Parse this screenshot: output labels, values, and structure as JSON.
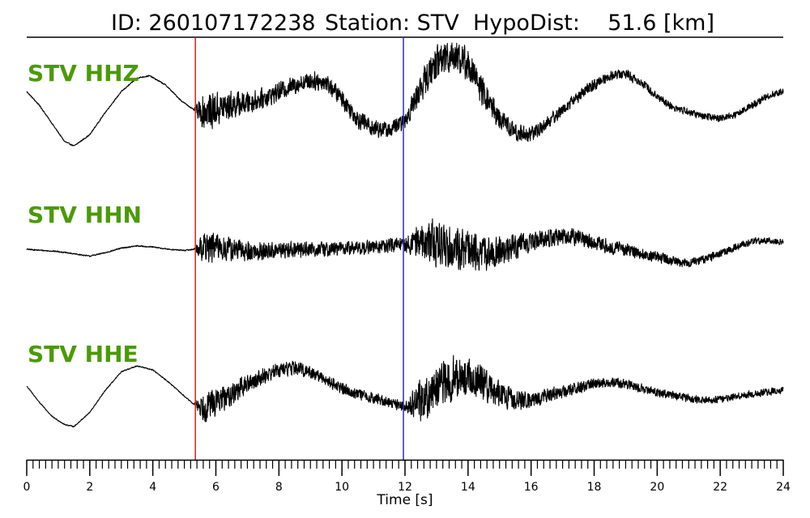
{
  "title": {
    "event_id": "ID: 260107172238",
    "station": "Station: STV",
    "hypodist": "HypoDist:    51.6 [km]"
  },
  "colors": {
    "label": "#4b9a06",
    "trace": "#000000",
    "p_pick": "#e8191c",
    "s_pick": "#2a2ad6"
  },
  "chart_data": {
    "type": "line",
    "title": "ID: 260107172238   Station: STV   HypoDist:    51.6 [km]",
    "xlabel": "Time [s]",
    "ylabel": "",
    "xlim": [
      0,
      24
    ],
    "xticks": [
      0,
      2,
      4,
      6,
      8,
      10,
      12,
      14,
      16,
      18,
      20,
      22,
      24
    ],
    "minor_tick_step": 0.2,
    "grid": false,
    "picks": [
      {
        "phase": "P",
        "time": 5.35,
        "color": "#e8191c"
      },
      {
        "phase": "S",
        "time": 11.95,
        "color": "#2a2ad6"
      }
    ],
    "series": [
      {
        "name": "STV HHZ",
        "description": "waveform",
        "x": [
          0,
          0.4,
          0.8,
          1.2,
          1.5,
          2.0,
          2.5,
          3.0,
          3.5,
          3.9,
          4.4,
          4.9,
          5.3,
          5.6,
          6.0,
          6.5,
          7.0,
          7.5,
          8.0,
          8.5,
          9.0,
          9.5,
          10.0,
          10.5,
          11.0,
          11.5,
          12.0,
          12.5,
          13.0,
          13.5,
          14.0,
          14.5,
          15.0,
          15.5,
          16.0,
          16.5,
          17.0,
          17.5,
          18.0,
          18.5,
          19.0,
          19.5,
          20.0,
          20.5,
          21.0,
          21.5,
          22.0,
          22.5,
          23.0,
          23.5,
          24.0
        ],
        "y": [
          0.6,
          0.0,
          -0.8,
          -1.6,
          -1.8,
          -1.3,
          -0.3,
          0.6,
          1.2,
          1.3,
          0.9,
          0.2,
          -0.2,
          -0.3,
          -0.2,
          0.0,
          0.1,
          0.3,
          0.6,
          0.9,
          1.1,
          1.0,
          0.3,
          -0.6,
          -1.0,
          -1.1,
          -0.7,
          0.8,
          1.9,
          2.3,
          1.8,
          0.5,
          -0.6,
          -1.2,
          -1.3,
          -0.8,
          -0.2,
          0.4,
          0.9,
          1.3,
          1.4,
          1.0,
          0.4,
          -0.1,
          -0.3,
          -0.5,
          -0.6,
          -0.4,
          0.0,
          0.4,
          0.6
        ],
        "noise": [
          0.03,
          0.03,
          0.03,
          0.03,
          0.03,
          0.03,
          0.03,
          0.03,
          0.03,
          0.03,
          0.03,
          0.03,
          0.03,
          0.9,
          0.85,
          0.7,
          0.55,
          0.5,
          0.45,
          0.45,
          0.45,
          0.45,
          0.45,
          0.45,
          0.45,
          0.4,
          0.4,
          0.7,
          0.9,
          0.9,
          0.8,
          0.7,
          0.55,
          0.45,
          0.4,
          0.35,
          0.3,
          0.3,
          0.28,
          0.25,
          0.25,
          0.22,
          0.2,
          0.2,
          0.18,
          0.18,
          0.18,
          0.18,
          0.18,
          0.18,
          0.15
        ]
      },
      {
        "name": "STV HHN",
        "description": "waveform",
        "x": [
          0,
          0.5,
          1.0,
          1.5,
          2.0,
          2.5,
          3.0,
          3.5,
          4.0,
          4.5,
          5.0,
          5.3,
          5.6,
          6.0,
          6.5,
          7.0,
          7.5,
          8.0,
          8.5,
          9.0,
          9.5,
          10.0,
          10.5,
          11.0,
          11.5,
          12.0,
          12.5,
          13.0,
          13.5,
          14.0,
          14.5,
          15.0,
          15.5,
          16.0,
          16.5,
          17.0,
          17.5,
          18.0,
          18.5,
          19.0,
          19.5,
          20.0,
          20.5,
          21.0,
          21.5,
          22.0,
          22.5,
          23.0,
          23.5,
          24.0
        ],
        "y": [
          0.0,
          -0.05,
          -0.1,
          -0.2,
          -0.3,
          -0.15,
          0.05,
          0.15,
          0.1,
          0.0,
          -0.05,
          0.0,
          0.1,
          0.1,
          0.0,
          -0.1,
          -0.1,
          -0.05,
          0.0,
          0.0,
          0.0,
          0.05,
          0.05,
          0.1,
          0.15,
          0.2,
          0.4,
          0.3,
          0.1,
          -0.1,
          -0.2,
          -0.1,
          0.1,
          0.3,
          0.5,
          0.6,
          0.5,
          0.3,
          0.1,
          0.0,
          -0.2,
          -0.35,
          -0.5,
          -0.6,
          -0.45,
          -0.2,
          0.1,
          0.35,
          0.4,
          0.3
        ],
        "noise": [
          0.03,
          0.03,
          0.03,
          0.03,
          0.03,
          0.03,
          0.03,
          0.03,
          0.03,
          0.03,
          0.03,
          0.03,
          0.75,
          0.7,
          0.6,
          0.5,
          0.45,
          0.4,
          0.4,
          0.38,
          0.36,
          0.35,
          0.35,
          0.35,
          0.35,
          0.35,
          0.9,
          1.2,
          1.1,
          1.0,
          0.85,
          0.7,
          0.6,
          0.5,
          0.45,
          0.45,
          0.42,
          0.38,
          0.35,
          0.32,
          0.3,
          0.26,
          0.25,
          0.22,
          0.2,
          0.2,
          0.18,
          0.17,
          0.15,
          0.15
        ]
      },
      {
        "name": "STV HHE",
        "description": "waveform",
        "x": [
          0,
          0.4,
          0.8,
          1.2,
          1.5,
          2.0,
          2.5,
          3.0,
          3.5,
          4.0,
          4.5,
          5.0,
          5.3,
          5.6,
          6.0,
          6.5,
          7.0,
          7.5,
          8.0,
          8.5,
          9.0,
          9.5,
          10.0,
          10.5,
          11.0,
          11.5,
          12.0,
          12.5,
          13.0,
          13.5,
          14.0,
          14.5,
          15.0,
          15.5,
          16.0,
          16.5,
          17.0,
          17.5,
          18.0,
          18.5,
          19.0,
          19.5,
          20.0,
          20.5,
          21.0,
          21.5,
          22.0,
          22.5,
          23.0,
          23.5,
          24.0
        ],
        "y": [
          0.2,
          -0.6,
          -1.3,
          -1.7,
          -1.8,
          -1.1,
          0.0,
          0.9,
          1.2,
          1.0,
          0.4,
          -0.3,
          -0.7,
          -0.8,
          -0.6,
          -0.2,
          0.3,
          0.7,
          1.0,
          1.1,
          0.9,
          0.5,
          0.1,
          -0.2,
          -0.4,
          -0.6,
          -0.8,
          -0.5,
          0.1,
          0.6,
          0.6,
          0.3,
          -0.2,
          -0.5,
          -0.5,
          -0.3,
          -0.1,
          0.1,
          0.3,
          0.4,
          0.3,
          0.1,
          -0.1,
          -0.25,
          -0.4,
          -0.5,
          -0.45,
          -0.3,
          -0.2,
          -0.1,
          0.0
        ],
        "noise": [
          0.03,
          0.03,
          0.03,
          0.03,
          0.03,
          0.03,
          0.03,
          0.03,
          0.03,
          0.03,
          0.03,
          0.03,
          0.03,
          0.9,
          0.75,
          0.6,
          0.5,
          0.45,
          0.4,
          0.4,
          0.35,
          0.35,
          0.33,
          0.3,
          0.3,
          0.3,
          0.3,
          1.2,
          1.3,
          1.2,
          1.1,
          0.9,
          0.7,
          0.55,
          0.45,
          0.4,
          0.35,
          0.33,
          0.3,
          0.28,
          0.26,
          0.25,
          0.25,
          0.22,
          0.22,
          0.2,
          0.2,
          0.2,
          0.2,
          0.2,
          0.2
        ]
      }
    ]
  }
}
